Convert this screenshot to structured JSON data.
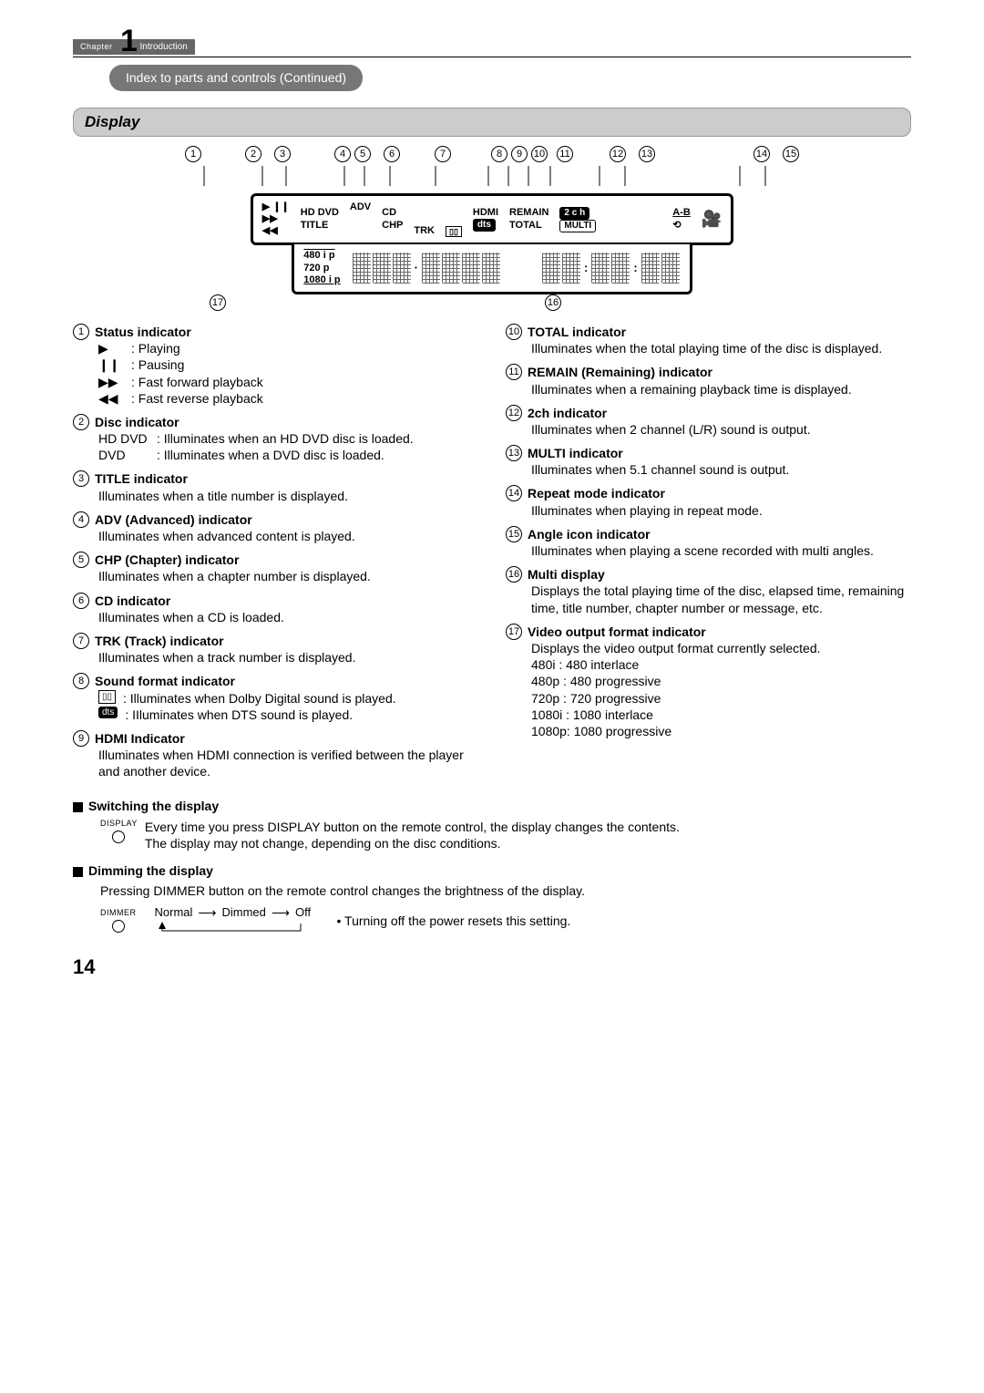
{
  "chapter": {
    "label": "Chapter",
    "number": "1",
    "title": "Introduction"
  },
  "subsection": "Index to parts and controls (Continued)",
  "display_header": "Display",
  "diagram": {
    "top_callouts": [
      "1",
      "2",
      "3",
      "4",
      "5",
      "6",
      "7",
      "8",
      "9",
      "10",
      "11",
      "12",
      "13",
      "14",
      "15"
    ],
    "bottom_callouts": [
      "17",
      "16"
    ],
    "labels": {
      "play_pause": "▶ ❙❙",
      "ff": "▶▶",
      "rw": "◀◀",
      "hddvd": "HD DVD",
      "title": "TITLE",
      "adv": "ADV",
      "cd": "CD",
      "chp": "CHP",
      "trk": "TRK",
      "dolby": "▯▯",
      "dts": "dts",
      "hdmi": "HDMI",
      "remain": "REMAIN",
      "total": "TOTAL",
      "2ch": "2 c h",
      "multi": "MULTI",
      "ab": "A-B",
      "repeat": "⟲",
      "angle": "🎥",
      "res": [
        "480 i p",
        "720 p",
        "1080 i p"
      ]
    }
  },
  "left_items": [
    {
      "n": "1",
      "title": "Status indicator",
      "rows": [
        {
          "icon": "▶",
          "text": ": Playing"
        },
        {
          "icon": "❙❙",
          "text": ": Pausing"
        },
        {
          "icon": "▶▶",
          "text": ": Fast forward playback"
        },
        {
          "icon": "◀◀",
          "text": ": Fast reverse playback"
        }
      ]
    },
    {
      "n": "2",
      "title": "Disc indicator",
      "rows": [
        {
          "label": "HD DVD",
          "text": ": Illuminates when an HD DVD disc is loaded."
        },
        {
          "label": "DVD",
          "text": ": Illuminates when a DVD disc is loaded."
        }
      ]
    },
    {
      "n": "3",
      "title": "TITLE indicator",
      "body": "Illuminates when a title number is displayed."
    },
    {
      "n": "4",
      "title": "ADV (Advanced) indicator",
      "body": "Illuminates when advanced content is played."
    },
    {
      "n": "5",
      "title": "CHP (Chapter) indicator",
      "body": "Illuminates when a chapter number is displayed."
    },
    {
      "n": "6",
      "title": "CD indicator",
      "body": "Illuminates when a CD is loaded."
    },
    {
      "n": "7",
      "title": "TRK (Track) indicator",
      "body": "Illuminates when a track number is displayed."
    },
    {
      "n": "8",
      "title": "Sound format indicator",
      "rows": [
        {
          "icon": "▯▯",
          "text": ": Illuminates when Dolby Digital sound is played."
        },
        {
          "icon": "dts",
          "text": ": IIluminates when DTS sound is played."
        }
      ]
    },
    {
      "n": "9",
      "title": "HDMI Indicator",
      "body": "Illuminates when HDMI connection is verified between the player and another device."
    }
  ],
  "right_items": [
    {
      "n": "10",
      "title": "TOTAL indicator",
      "body": "Illuminates when the total playing time of the disc is displayed."
    },
    {
      "n": "11",
      "title": "REMAIN (Remaining) indicator",
      "body": "Illuminates when a remaining playback time is displayed."
    },
    {
      "n": "12",
      "title": "2ch indicator",
      "body": "Illuminates when 2 channel (L/R) sound is output."
    },
    {
      "n": "13",
      "title": "MULTI indicator",
      "body": "Illuminates when 5.1 channel sound is output."
    },
    {
      "n": "14",
      "title": "Repeat mode indicator",
      "body": "Illuminates when playing in repeat mode."
    },
    {
      "n": "15",
      "title": "Angle icon indicator",
      "body": "Illuminates when playing a scene recorded with multi angles."
    },
    {
      "n": "16",
      "title": "Multi display",
      "body": "Displays the total playing time of the disc, elapsed time, remaining time, title number, chapter number or message, etc."
    },
    {
      "n": "17",
      "title": "Video output format indicator",
      "body": "Displays the video output format currently selected.",
      "list": [
        "480i   :  480 interlace",
        "480p  :  480 progressive",
        "720p  :  720 progressive",
        "1080i :  1080 interlace",
        "1080p:  1080 progressive"
      ]
    }
  ],
  "switching": {
    "heading": "Switching the display",
    "button": "DISPLAY",
    "line1": "Every time you press DISPLAY button on the remote control, the display changes the contents.",
    "line2": "The display may not change, depending on the disc conditions."
  },
  "dimming": {
    "heading": "Dimming the display",
    "line1": "Pressing DIMMER button on the remote control changes the brightness of the display.",
    "button": "DIMMER",
    "states": [
      "Normal",
      "Dimmed",
      "Off"
    ],
    "note": "• Turning off the power resets this setting."
  },
  "page_number": "14"
}
